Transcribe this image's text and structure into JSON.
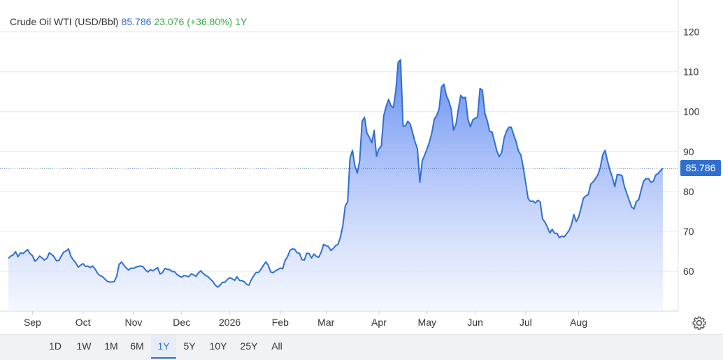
{
  "legend": {
    "title": "Crude Oil WTI (USD/Bbl)",
    "last": "85.786",
    "change": "23.076",
    "change_pct": "(+36.80%)",
    "period": "1Y"
  },
  "colors": {
    "line": "#2f6fd1",
    "fill_top": "#5b86f0",
    "fill_bottom": "#eef2ff",
    "last_value_text": "#2f6fd1",
    "change_text": "#3aa845",
    "grid": "#e6e6e6"
  },
  "range_buttons": [
    "1D",
    "1W",
    "1M",
    "6M",
    "1Y",
    "5Y",
    "10Y",
    "25Y",
    "All"
  ],
  "active_range": "1Y",
  "icons": {
    "settings": "gear-icon"
  },
  "chart_data": {
    "type": "area",
    "title": "Crude Oil WTI (USD/Bbl)",
    "xlabel": "",
    "ylabel": "",
    "ylim": [
      50,
      128
    ],
    "y_ticks": [
      60,
      70,
      80,
      90,
      100,
      110,
      120
    ],
    "grid": true,
    "last_value": 85.786,
    "last_value_label": "85.786",
    "x_tick_labels": [
      "Sep",
      "Oct",
      "Nov",
      "Dec",
      "2026",
      "Feb",
      "Mar",
      "Apr",
      "May",
      "Jun",
      "Jul",
      "Aug"
    ],
    "x_tick_index": [
      10,
      31,
      52,
      72,
      92,
      113,
      132,
      154,
      174,
      194,
      215,
      237
    ],
    "series": [
      {
        "values": [
          63.2,
          63.8,
          64.1,
          64.9,
          63.6,
          64.6,
          64.4,
          64.9,
          65.4,
          64.4,
          63.9,
          62.5,
          63.0,
          63.8,
          63.3,
          62.8,
          63.2,
          64.6,
          64.2,
          63.6,
          62.6,
          62.7,
          63.8,
          64.8,
          65.1,
          65.6,
          63.7,
          62.8,
          62.1,
          61.0,
          61.5,
          61.9,
          61.2,
          61.3,
          60.9,
          61.3,
          60.6,
          59.5,
          58.9,
          58.7,
          58.1,
          57.5,
          57.3,
          57.3,
          57.4,
          58.7,
          61.7,
          62.3,
          61.5,
          60.8,
          60.3,
          60.8,
          60.7,
          61.0,
          61.2,
          61.3,
          61.1,
          60.3,
          59.8,
          60.4,
          60.1,
          60.5,
          60.9,
          59.3,
          59.6,
          60.7,
          60.5,
          60.4,
          59.9,
          59.9,
          59.2,
          58.8,
          58.5,
          58.9,
          58.8,
          58.6,
          59.3,
          59.1,
          58.7,
          59.6,
          60.1,
          59.4,
          58.9,
          58.6,
          58.0,
          57.4,
          56.5,
          56.0,
          56.5,
          57.2,
          57.2,
          57.9,
          58.4,
          58.1,
          57.7,
          58.6,
          57.7,
          57.6,
          57.4,
          56.7,
          56.5,
          57.9,
          58.9,
          59.7,
          59.7,
          60.5,
          61.5,
          62.3,
          61.5,
          59.8,
          59.6,
          60.1,
          60.4,
          60.8,
          60.6,
          62.7,
          63.6,
          65.2,
          65.6,
          65.5,
          64.6,
          64.5,
          62.9,
          62.8,
          64.5,
          64.4,
          63.3,
          64.3,
          63.7,
          63.5,
          64.8,
          66.7,
          66.4,
          66.2,
          65.2,
          65.7,
          66.4,
          66.7,
          68.6,
          71.4,
          76.4,
          77.4,
          88.4,
          90.3,
          86.4,
          84.6,
          87.7,
          97.6,
          98.6,
          94.7,
          93.6,
          92.2,
          95.3,
          88.8,
          90.7,
          91.4,
          99.0,
          101.3,
          103.1,
          101.5,
          101.0,
          105.1,
          112.4,
          113.0,
          96.4,
          96.4,
          97.6,
          96.9,
          94.7,
          92.4,
          90.7,
          82.3,
          87.7,
          89.1,
          90.7,
          92.4,
          94.7,
          98.1,
          99.0,
          100.7,
          106.2,
          106.9,
          104.1,
          102.7,
          100.7,
          95.4,
          96.8,
          100.6,
          104.1,
          103.4,
          103.6,
          98.1,
          96.2,
          97.9,
          98.4,
          98.6,
          105.8,
          105.4,
          99.6,
          97.8,
          95.1,
          94.9,
          92.6,
          90.1,
          88.7,
          89.7,
          93.3,
          95.1,
          96.1,
          96.1,
          94.2,
          92.5,
          90.1,
          89.1,
          85.9,
          82.1,
          78.2,
          77.5,
          77.6,
          77.1,
          77.8,
          77.4,
          73.1,
          72.3,
          71.1,
          69.6,
          70.5,
          69.5,
          69.5,
          68.4,
          68.8,
          68.6,
          69.4,
          70.2,
          71.6,
          74.2,
          72.4,
          73.6,
          75.9,
          78.3,
          78.9,
          79.2,
          81.8,
          82.4,
          83.2,
          84.2,
          86.0,
          89.2,
          90.3,
          87.6,
          85.3,
          83.6,
          81.2,
          84.2,
          84.2,
          84.0,
          81.3,
          79.5,
          77.8,
          76.1,
          75.6,
          77.5,
          78.0,
          80.4,
          82.6,
          83.2,
          83.2,
          82.3,
          82.5,
          84.1,
          84.5,
          85.2,
          85.8
        ]
      }
    ]
  }
}
